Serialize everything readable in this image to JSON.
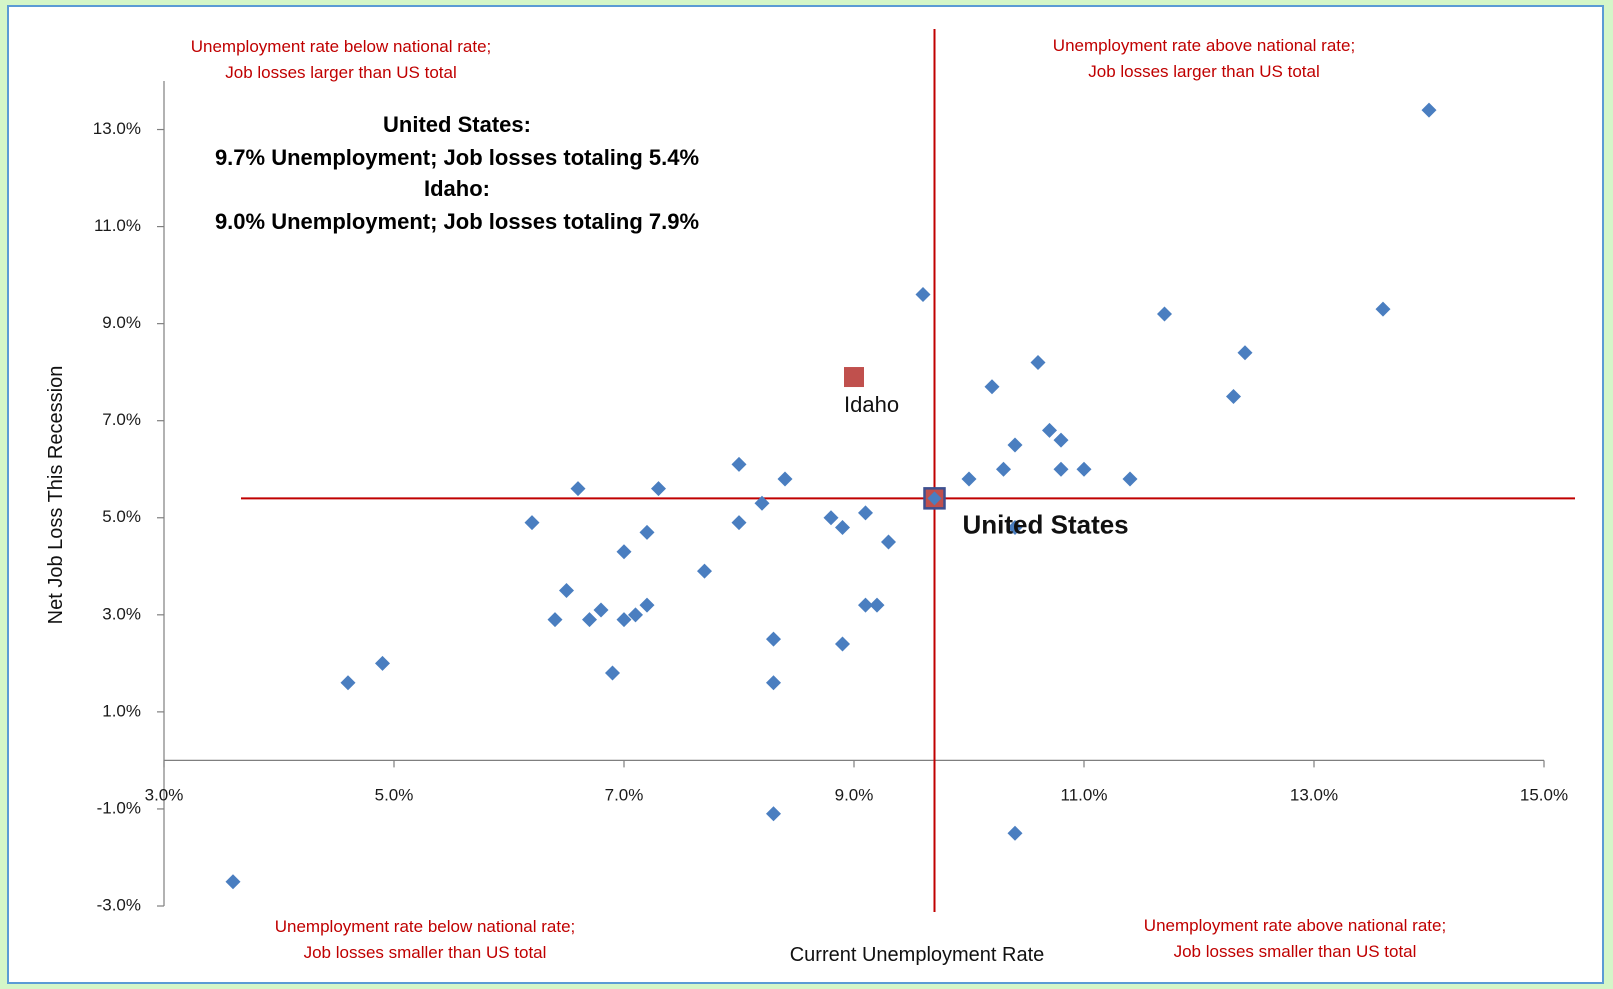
{
  "chart_data": {
    "type": "scatter",
    "xlabel": "Current Unemployment Rate",
    "ylabel": "Net Job Loss This Recession",
    "xlim": [
      3.0,
      15.0
    ],
    "ylim": [
      -3.0,
      14.0
    ],
    "x_ticks": [
      "3.0%",
      "5.0%",
      "7.0%",
      "9.0%",
      "11.0%",
      "13.0%",
      "15.0%"
    ],
    "y_ticks": [
      "13.0%",
      "11.0%",
      "9.0%",
      "7.0%",
      "5.0%",
      "3.0%",
      "1.0%",
      "-1.0%",
      "-3.0%"
    ],
    "reference_lines": {
      "x": 9.7,
      "y": 5.4
    },
    "quadrant_labels": {
      "top_left": [
        "Unemployment rate below national rate;",
        "Job losses larger than US total"
      ],
      "top_right": [
        "Unemployment rate above national rate;",
        "Job losses larger than US total"
      ],
      "bottom_left": [
        "Unemployment rate below national rate;",
        "Job losses smaller than US total"
      ],
      "bottom_right": [
        "Unemployment rate above national rate;",
        "Job losses smaller than US total"
      ]
    },
    "summary": [
      "United States:",
      "9.7% Unemployment; Job losses totaling 5.4%",
      "Idaho:",
      "9.0% Unemployment; Job losses totaling 7.9%"
    ],
    "highlights": {
      "idaho": {
        "label": "Idaho",
        "x": 9.0,
        "y": 7.9
      },
      "us": {
        "label": "United States",
        "x": 9.7,
        "y": 5.4
      }
    },
    "colors": {
      "states": "#4a7ec0",
      "idaho": "#c0504d",
      "lines": "#c00000"
    },
    "states": [
      {
        "x": 3.6,
        "y": -2.5
      },
      {
        "x": 4.6,
        "y": 1.6
      },
      {
        "x": 4.9,
        "y": 2.0
      },
      {
        "x": 6.2,
        "y": 4.9
      },
      {
        "x": 6.4,
        "y": 2.9
      },
      {
        "x": 6.5,
        "y": 3.5
      },
      {
        "x": 6.6,
        "y": 5.6
      },
      {
        "x": 6.7,
        "y": 2.9
      },
      {
        "x": 6.8,
        "y": 3.1
      },
      {
        "x": 6.9,
        "y": 1.8
      },
      {
        "x": 7.0,
        "y": 4.3
      },
      {
        "x": 7.0,
        "y": 2.9
      },
      {
        "x": 7.1,
        "y": 3.0
      },
      {
        "x": 7.2,
        "y": 4.7
      },
      {
        "x": 7.2,
        "y": 3.2
      },
      {
        "x": 7.3,
        "y": 5.6
      },
      {
        "x": 7.7,
        "y": 3.9
      },
      {
        "x": 8.0,
        "y": 6.1
      },
      {
        "x": 8.0,
        "y": 4.9
      },
      {
        "x": 8.2,
        "y": 5.3
      },
      {
        "x": 8.3,
        "y": 2.5
      },
      {
        "x": 8.3,
        "y": 1.6
      },
      {
        "x": 8.3,
        "y": -1.1
      },
      {
        "x": 8.4,
        "y": 5.8
      },
      {
        "x": 8.8,
        "y": 5.0
      },
      {
        "x": 8.9,
        "y": 4.8
      },
      {
        "x": 8.9,
        "y": 2.4
      },
      {
        "x": 9.1,
        "y": 5.1
      },
      {
        "x": 9.1,
        "y": 3.2
      },
      {
        "x": 9.2,
        "y": 3.2
      },
      {
        "x": 9.3,
        "y": 4.5
      },
      {
        "x": 9.6,
        "y": 9.6
      },
      {
        "x": 10.0,
        "y": 5.8
      },
      {
        "x": 10.2,
        "y": 7.7
      },
      {
        "x": 10.3,
        "y": 6.0
      },
      {
        "x": 10.4,
        "y": 6.5
      },
      {
        "x": 10.4,
        "y": 4.8
      },
      {
        "x": 10.4,
        "y": -1.5
      },
      {
        "x": 10.6,
        "y": 8.2
      },
      {
        "x": 10.7,
        "y": 6.8
      },
      {
        "x": 10.8,
        "y": 6.6
      },
      {
        "x": 10.8,
        "y": 6.0
      },
      {
        "x": 11.0,
        "y": 6.0
      },
      {
        "x": 11.4,
        "y": 5.8
      },
      {
        "x": 11.7,
        "y": 9.2
      },
      {
        "x": 12.3,
        "y": 7.5
      },
      {
        "x": 12.4,
        "y": 8.4
      },
      {
        "x": 13.6,
        "y": 9.3
      },
      {
        "x": 14.0,
        "y": 13.4
      }
    ]
  }
}
